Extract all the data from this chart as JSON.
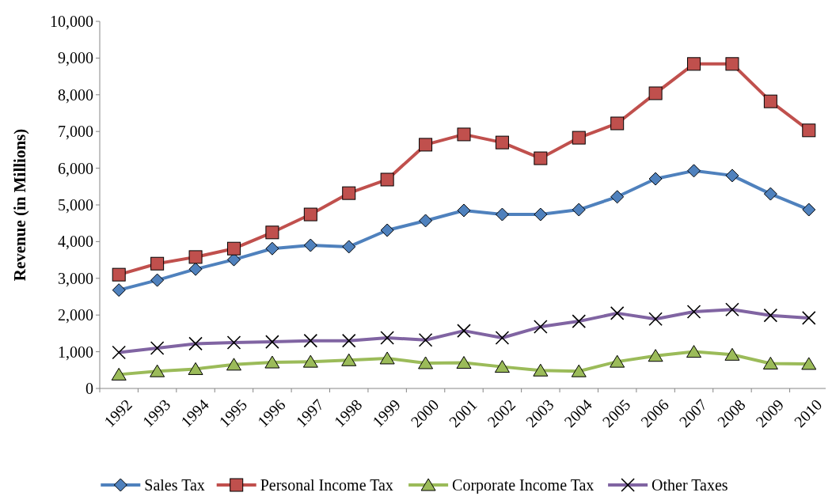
{
  "chart_data": {
    "type": "line",
    "ylabel": "Revenue (in Millions)",
    "categories": [
      "1992",
      "1993",
      "1994",
      "1995",
      "1996",
      "1997",
      "1998",
      "1999",
      "2000",
      "2001",
      "2002",
      "2003",
      "2004",
      "2005",
      "2006",
      "2007",
      "2008",
      "2009",
      "2010"
    ],
    "ylim": [
      0,
      10000
    ],
    "yticks": [
      {
        "value": 0,
        "label": "0"
      },
      {
        "value": 1000,
        "label": "1,000"
      },
      {
        "value": 2000,
        "label": "2,000"
      },
      {
        "value": 3000,
        "label": "3,000"
      },
      {
        "value": 4000,
        "label": "4,000"
      },
      {
        "value": 5000,
        "label": "5,000"
      },
      {
        "value": 6000,
        "label": "6,000"
      },
      {
        "value": 7000,
        "label": "7,000"
      },
      {
        "value": 8000,
        "label": "8,000"
      },
      {
        "value": 9000,
        "label": "9,000"
      },
      {
        "value": 10000,
        "label": "10,000"
      }
    ],
    "grid": false,
    "legend": "bottom",
    "line_style": "solid",
    "series": [
      {
        "name": "Sales Tax",
        "color": "#4f81bd",
        "marker": "diamond",
        "values": [
          2680,
          2950,
          3250,
          3510,
          3810,
          3900,
          3860,
          4310,
          4570,
          4850,
          4740,
          4740,
          4870,
          5220,
          5710,
          5930,
          5800,
          5300,
          4870
        ]
      },
      {
        "name": "Personal Income Tax",
        "color": "#c0504d",
        "marker": "square",
        "values": [
          3100,
          3400,
          3580,
          3810,
          4250,
          4740,
          5320,
          5690,
          6640,
          6920,
          6700,
          6270,
          6830,
          7220,
          8040,
          8840,
          8840,
          7820,
          7030
        ]
      },
      {
        "name": "Corporate Income Tax",
        "color": "#9bbb59",
        "marker": "triangle",
        "values": [
          380,
          470,
          530,
          650,
          710,
          730,
          770,
          820,
          690,
          700,
          590,
          490,
          470,
          730,
          890,
          1000,
          920,
          680,
          670
        ]
      },
      {
        "name": "Other Taxes",
        "color": "#8064a2",
        "marker": "cross",
        "values": [
          980,
          1100,
          1220,
          1250,
          1270,
          1300,
          1300,
          1380,
          1320,
          1570,
          1380,
          1680,
          1830,
          2050,
          1890,
          2090,
          2150,
          1990,
          1920
        ]
      }
    ]
  }
}
